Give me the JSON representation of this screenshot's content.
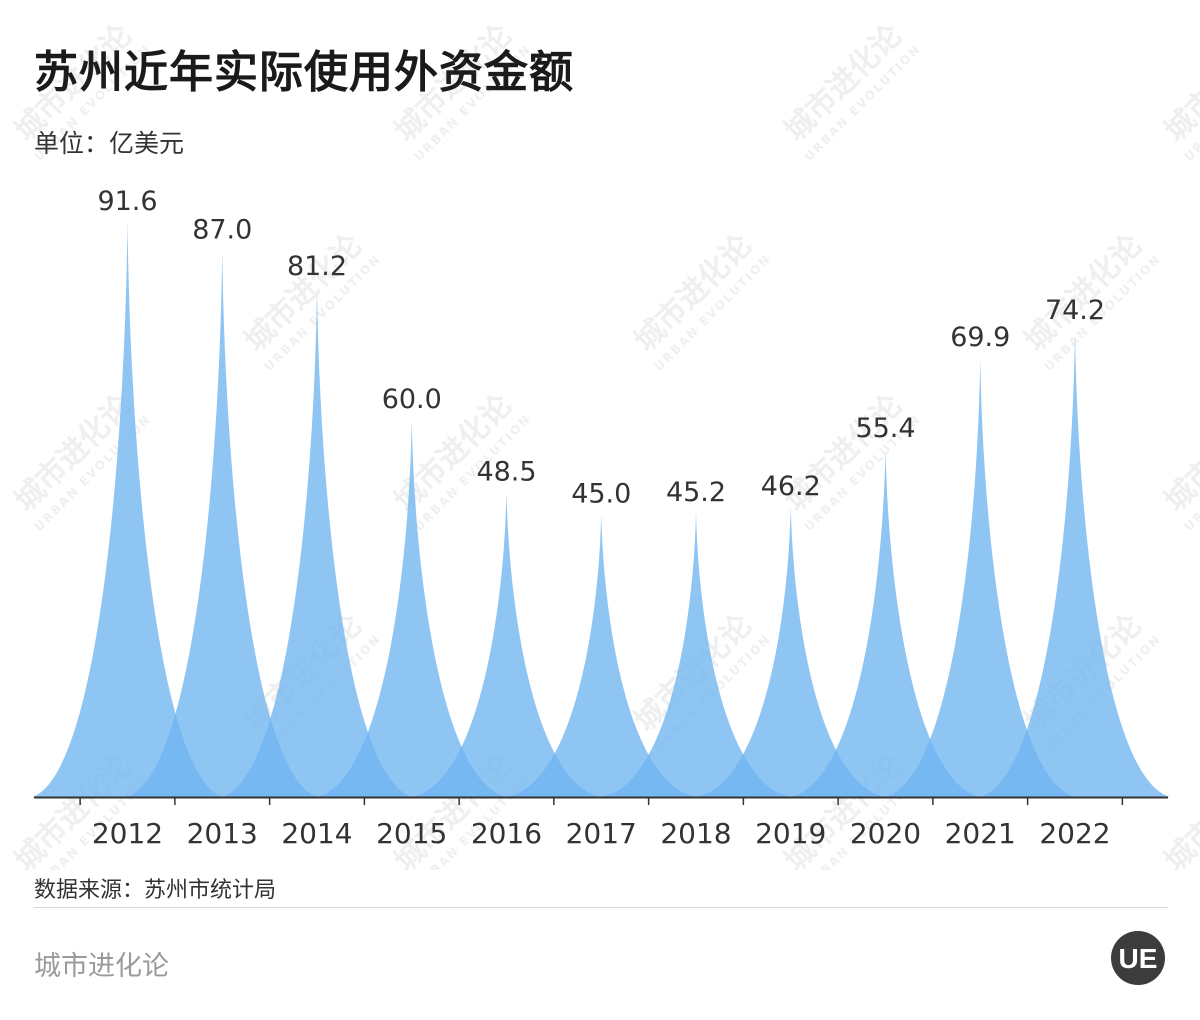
{
  "header": {
    "title": "苏州近年实际使用外资金额",
    "unit": "单位：亿美元"
  },
  "footer": {
    "source": "数据来源：苏州市统计局",
    "brand": "城市进化论",
    "logo_text": "UE"
  },
  "watermark": {
    "cn": "城市进化论",
    "en": "URBAN EVOLUTION"
  },
  "colors": {
    "fill": "#6fb5ef",
    "axis": "#333333",
    "label": "#333333"
  },
  "chart_data": {
    "type": "area",
    "title": "苏州近年实际使用外资金额",
    "ylabel": "单位：亿美元",
    "categories": [
      "2012",
      "2013",
      "2014",
      "2015",
      "2016",
      "2017",
      "2018",
      "2019",
      "2020",
      "2021",
      "2022"
    ],
    "series": [
      {
        "values": [
          91.6,
          87.0,
          81.2,
          60.0,
          48.5,
          45.0,
          45.2,
          46.2,
          55.4,
          69.9,
          74.2
        ]
      }
    ],
    "ylim": [
      0,
      100
    ],
    "grid": false,
    "legend": "none"
  }
}
